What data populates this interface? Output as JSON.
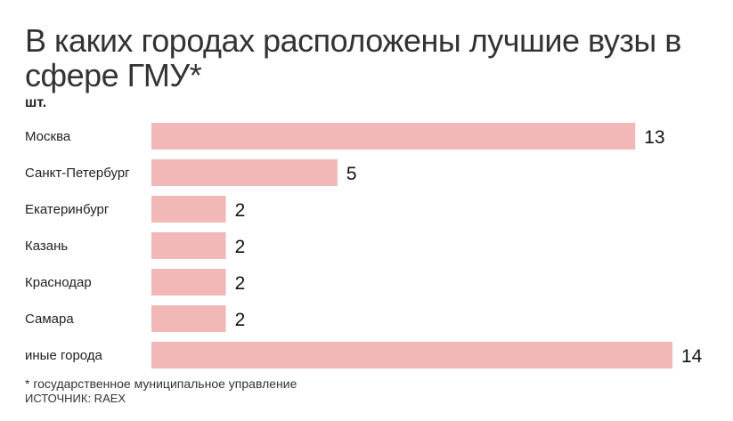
{
  "chart_data": {
    "type": "bar",
    "orientation": "horizontal",
    "title": "В каких городах расположены лучшие вузы в сфере ГМУ*",
    "unit": "шт.",
    "categories": [
      "Москва",
      "Санкт-Петербург",
      "Екатеринбург",
      "Казань",
      "Краснодар",
      "Самара",
      "иные города"
    ],
    "values": [
      13,
      5,
      2,
      2,
      2,
      2,
      14
    ],
    "bar_color": "#f2b8b8",
    "xlim": [
      0,
      14
    ],
    "grid": false,
    "legend": "none"
  },
  "footnote": "* государственное муниципальное управление",
  "source": "ИСТОЧНИК: RAEX"
}
